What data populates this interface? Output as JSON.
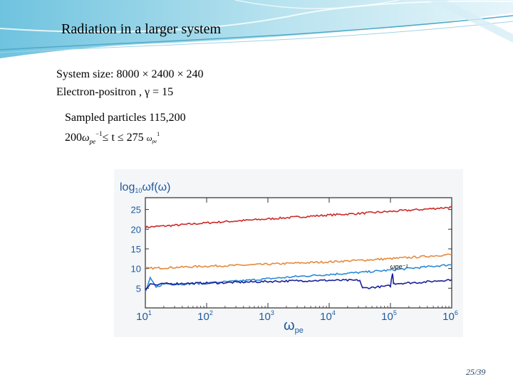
{
  "slide": {
    "title": "Radiation in a larger system",
    "system_size": "System size: 8000 × 2400 × 240",
    "species": "Electron-positron , γ = 15",
    "sampled": "Sampled particles 115,200",
    "time_range": {
      "prefix": "200",
      "omega": "ω",
      "pe": "pe",
      "minus_one": "−1",
      "middle": "≤ t ≤ 275",
      "small_omega": "ω",
      "small_pe": "pe",
      "small_exp": "1"
    },
    "page_number": "25/39"
  },
  "colors": {
    "red": "#cc2a2a",
    "orange": "#e58a3c",
    "light_blue": "#2a8ad4",
    "dark_blue": "#1a1f9a",
    "axis_label": "#1e5aa0"
  },
  "chart_data": {
    "type": "line",
    "ylabel": "log10 ωf(ω)",
    "ylabel_parts": {
      "main": "log",
      "sub": "10",
      "rest": "ωf(ω)"
    },
    "xlabel": "ωpe",
    "xlabel_parts": {
      "main": "ω",
      "sub": "pe"
    },
    "xscale": "log",
    "xlim": [
      10,
      1000000
    ],
    "ylim": [
      0,
      28
    ],
    "x_ticks": [
      {
        "base": "10",
        "exp": "1",
        "value": 10
      },
      {
        "base": "10",
        "exp": "2",
        "value": 100
      },
      {
        "base": "10",
        "exp": "3",
        "value": 1000
      },
      {
        "base": "10",
        "exp": "4",
        "value": 10000
      },
      {
        "base": "10",
        "exp": "5",
        "value": 100000
      },
      {
        "base": "10",
        "exp": "6",
        "value": 1000000
      }
    ],
    "y_ticks": [
      5,
      10,
      15,
      20,
      25
    ],
    "annotation": {
      "text": "ωpe⁻¹",
      "x": 110000,
      "y": 8.5
    },
    "series": [
      {
        "name": "red",
        "color_key": "red",
        "x": [
          10,
          31,
          100,
          316,
          1000,
          3162,
          10000,
          31623,
          100000,
          316228,
          1000000
        ],
        "y": [
          20.5,
          21.0,
          21.6,
          22.1,
          22.6,
          23.1,
          23.6,
          24.0,
          24.5,
          25.0,
          25.6
        ]
      },
      {
        "name": "orange",
        "color_key": "orange",
        "x": [
          10,
          31,
          100,
          316,
          1000,
          3162,
          10000,
          31623,
          100000,
          316228,
          1000000
        ],
        "y": [
          10.0,
          10.3,
          10.6,
          10.8,
          11.1,
          11.4,
          11.7,
          12.1,
          12.5,
          13.0,
          13.6
        ]
      },
      {
        "name": "light_blue",
        "color_key": "light_blue",
        "x": [
          10,
          12,
          15,
          20,
          31,
          100,
          316,
          1000,
          3162,
          10000,
          31623,
          100000,
          316228,
          1000000
        ],
        "y": [
          4.0,
          7.5,
          5.2,
          6.2,
          6.0,
          6.3,
          6.8,
          7.4,
          8.0,
          8.5,
          9.0,
          9.6,
          10.3,
          11.0
        ]
      },
      {
        "name": "dark_blue",
        "color_key": "dark_blue",
        "x": [
          10,
          12,
          15,
          20,
          31,
          100,
          316,
          1000,
          3162,
          10000,
          31623,
          35000,
          50000,
          100000,
          108000,
          112000,
          120000,
          316228,
          1000000
        ],
        "y": [
          4.6,
          6.2,
          5.8,
          6.1,
          6.2,
          6.3,
          6.5,
          6.7,
          6.9,
          7.0,
          7.0,
          5.0,
          5.2,
          5.6,
          8.8,
          6.4,
          6.2,
          6.5,
          7.2
        ]
      }
    ]
  }
}
